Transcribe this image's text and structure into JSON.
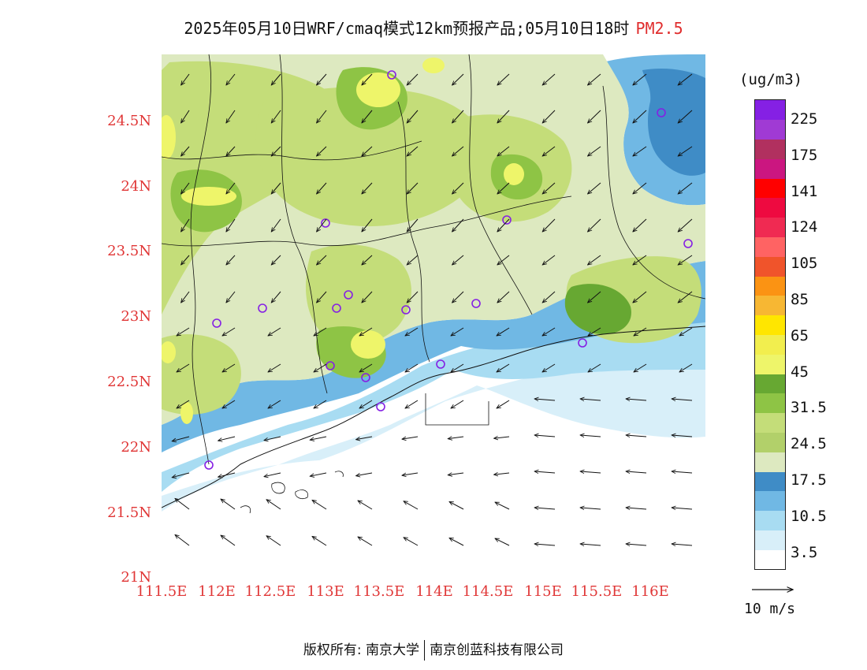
{
  "title": {
    "main": "2025年05月10日WRF/cmaq模式12km预报产品;05月10日18时",
    "pollutant": "PM2.5"
  },
  "axes": {
    "lat_labels": [
      "24.5N",
      "24N",
      "23.5N",
      "23N",
      "22.5N",
      "22N",
      "21.5N",
      "21N"
    ],
    "lon_labels": [
      "111.5E",
      "112E",
      "112.5E",
      "113E",
      "113.5E",
      "114E",
      "114.5E",
      "115E",
      "115.5E",
      "116E"
    ]
  },
  "legend": {
    "unit": "(ug/m3)",
    "labels": [
      "225",
      "175",
      "141",
      "124",
      "105",
      "85",
      "65",
      "45",
      "31.5",
      "24.5",
      "17.5",
      "10.5",
      "3.5"
    ],
    "colors": [
      "#ffffff",
      "#d8eff9",
      "#a8dcf2",
      "#70b8e4",
      "#3f8cc6",
      "#dde9c0",
      "#b2d06a",
      "#c4dd79",
      "#8ec445",
      "#67a832",
      "#eef56a",
      "#f2ee4e",
      "#ffe600",
      "#f7b733",
      "#fb9313",
      "#f0542b",
      "#ff6363",
      "#f02a52",
      "#ee0a40",
      "#ff0000",
      "#cb1680",
      "#b1305f",
      "#a03ad4",
      "#8520e4"
    ]
  },
  "wind_reference": {
    "label": "10 m/s"
  },
  "footer": {
    "left": "版权所有: 南京大学",
    "right": "南京创蓝科技有限公司"
  }
}
